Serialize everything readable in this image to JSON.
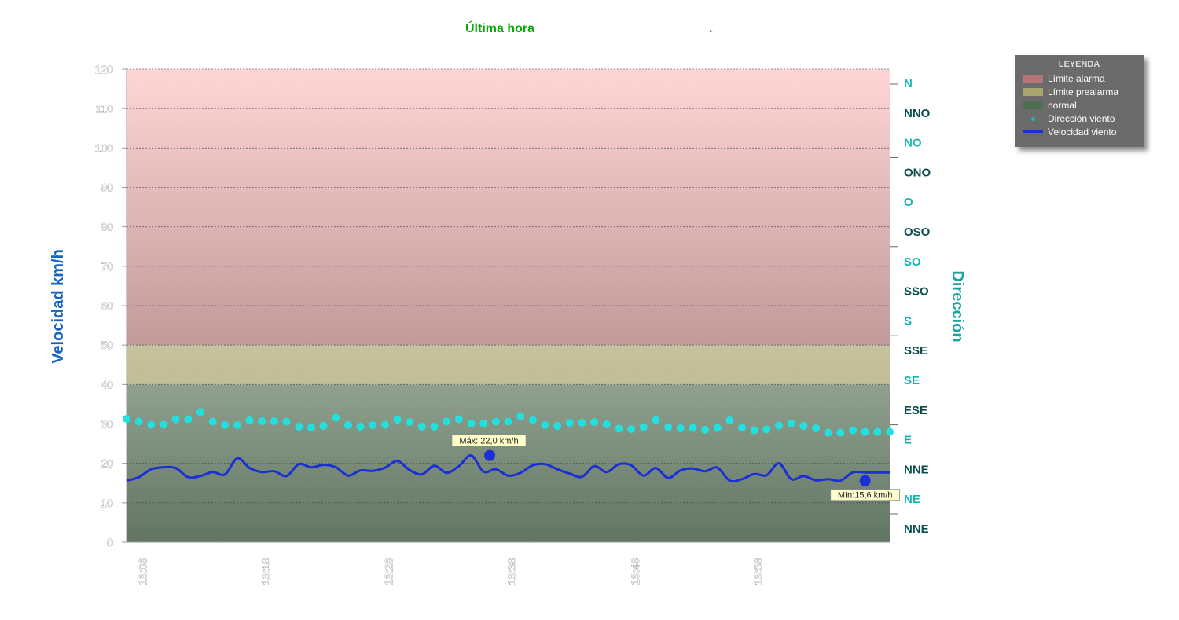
{
  "chart_data": {
    "type": "line",
    "title": "Última hora",
    "title_suffix": ".",
    "ylabel": "Velocidad km/h",
    "y2label": "Dirección",
    "ylim": [
      0,
      120
    ],
    "yticks": [
      0,
      10,
      20,
      30,
      40,
      50,
      60,
      70,
      80,
      90,
      100,
      110,
      120
    ],
    "y2_labels": [
      "N",
      "NNO",
      "NO",
      "ONO",
      "O",
      "OSO",
      "SO",
      "SSO",
      "S",
      "SSE",
      "SE",
      "ESE",
      "E",
      "NNE",
      "NE",
      "NNE"
    ],
    "y2_tick_values": [
      0,
      22.5,
      45,
      67.5,
      90,
      112.5,
      135,
      157.5,
      180,
      202.5,
      225,
      247.5,
      270,
      292.5,
      315,
      337.5
    ],
    "y2_colors": [
      "#17b3b3",
      "#0c4d4d"
    ],
    "x_tick_labels": [
      "13:08",
      "13:18",
      "13:28",
      "13:38",
      "13:48",
      "13:58",
      ""
    ],
    "xlim": [
      0,
      62
    ],
    "x_tick_positions": [
      2,
      12,
      22,
      32,
      42,
      52,
      60
    ],
    "bands": [
      {
        "name": "normal",
        "from": 0,
        "to": 40,
        "color_top": "#8fa08f",
        "color_bottom": "#627562"
      },
      {
        "name": "Límite prealarma",
        "from": 40,
        "to": 50,
        "color_top": "#c5c29d",
        "color_bottom": "#c1bd95"
      },
      {
        "name": "Límite alarma",
        "from": 50,
        "to": 120,
        "color_top": "#ffd5d5",
        "color_bottom": "#c29a99"
      }
    ],
    "series": [
      {
        "name": "Velocidad viento",
        "color": "#1b2fd6",
        "x": [
          0,
          1,
          2,
          3,
          4,
          5,
          6,
          7,
          8,
          9,
          10,
          11,
          12,
          13,
          14,
          15,
          16,
          17,
          18,
          19,
          20,
          21,
          22,
          23,
          24,
          25,
          26,
          27,
          28,
          29,
          30,
          31,
          32,
          33,
          34,
          35,
          36,
          37,
          38,
          39,
          40,
          41,
          42,
          43,
          44,
          45,
          46,
          47,
          48,
          49,
          50,
          51,
          52,
          53,
          54,
          55,
          56,
          57,
          58,
          59,
          60,
          61,
          62
        ],
        "values": [
          15.6,
          16.5,
          18.5,
          19.0,
          18.8,
          16.5,
          16.8,
          17.8,
          17.2,
          21.3,
          18.8,
          17.8,
          18.0,
          16.8,
          19.8,
          19.0,
          19.6,
          19.0,
          16.9,
          18.2,
          18.1,
          18.9,
          20.6,
          18.3,
          17.2,
          19.4,
          17.6,
          19.3,
          22.0,
          17.9,
          18.5,
          16.9,
          17.6,
          19.5,
          19.8,
          18.5,
          17.4,
          16.6,
          19.3,
          17.8,
          19.8,
          19.5,
          16.9,
          18.8,
          16.3,
          18.2,
          18.7,
          18.0,
          18.9,
          15.6,
          16.0,
          17.3,
          17.0,
          20.0,
          16.0,
          16.8,
          15.7,
          16.0,
          15.6,
          17.7,
          17.7,
          17.7,
          17.7
        ],
        "max_label": "Máx: 22,0 km/h",
        "max_point": {
          "x": 29.5,
          "y": 22.0
        },
        "min_label": "Mín:15,6 km/h",
        "min_point": {
          "x": 60,
          "y": 15.6
        }
      },
      {
        "name": "Dirección viento",
        "color": "#22e0e0",
        "x": [
          0,
          1,
          2,
          3,
          4,
          5,
          6,
          7,
          8,
          9,
          10,
          11,
          12,
          13,
          14,
          15,
          16,
          17,
          18,
          19,
          20,
          21,
          22,
          23,
          24,
          25,
          26,
          27,
          28,
          29,
          30,
          31,
          32,
          33,
          34,
          35,
          36,
          37,
          38,
          39,
          40,
          41,
          42,
          43,
          44,
          45,
          46,
          47,
          48,
          49,
          50,
          51,
          52,
          53,
          54,
          55,
          56,
          57,
          58,
          59,
          60,
          61,
          62
        ],
        "values": [
          31.3,
          30.6,
          29.8,
          29.8,
          31.2,
          31.2,
          33.0,
          30.6,
          29.7,
          29.7,
          30.9,
          30.7,
          30.7,
          30.6,
          29.3,
          29.1,
          29.5,
          31.6,
          29.7,
          29.3,
          29.7,
          29.8,
          31.1,
          30.5,
          29.3,
          29.3,
          30.6,
          31.2,
          30.1,
          30.1,
          30.6,
          30.6,
          32.0,
          31.0,
          29.7,
          29.5,
          30.3,
          30.3,
          30.5,
          29.9,
          28.8,
          28.7,
          29.2,
          31.0,
          29.2,
          28.9,
          29.0,
          28.5,
          29.0,
          30.9,
          29.1,
          28.4,
          28.6,
          29.6,
          30.1,
          29.5,
          28.9,
          27.8,
          27.8,
          28.4,
          28.0,
          28.0,
          28.0
        ]
      }
    ],
    "legend_position": "top-right"
  },
  "legend": {
    "title": "LEYENDA",
    "items": [
      {
        "label": "Límite alarma",
        "kind": "band",
        "color": "#b77474"
      },
      {
        "label": "Límite prealarma",
        "kind": "band",
        "color": "#a7a66f"
      },
      {
        "label": "normal",
        "kind": "band",
        "color": "#4f6e4f"
      },
      {
        "label": "Dirección viento",
        "kind": "dot",
        "color": "#1fb7b7"
      },
      {
        "label": "Velocidad viento",
        "kind": "line",
        "color": "#1b2fd6"
      }
    ]
  },
  "colors": {
    "title": "#0aa80a",
    "ylabel": "#1565c0",
    "y2label": "#1aa3a3",
    "tooltip_bg": "#ffffcc"
  }
}
